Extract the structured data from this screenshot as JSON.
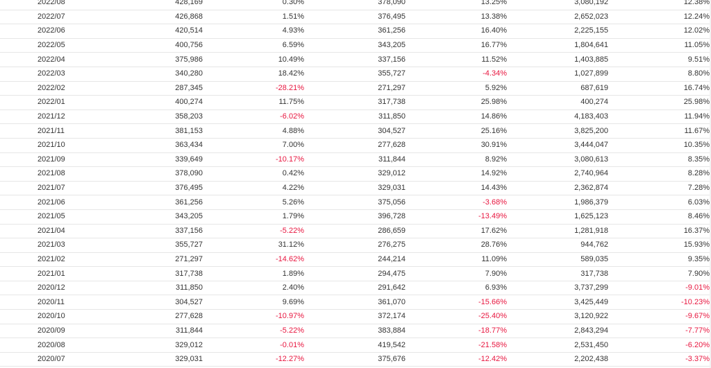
{
  "colors": {
    "negative": "#e8163f",
    "text": "#333333",
    "row_border": "#e6e6e6"
  },
  "table": {
    "rows": [
      [
        "2022/08",
        "428,169",
        "0.30%",
        "378,090",
        "13.25%",
        "3,080,192",
        "12.38%"
      ],
      [
        "2022/07",
        "426,868",
        "1.51%",
        "376,495",
        "13.38%",
        "2,652,023",
        "12.24%"
      ],
      [
        "2022/06",
        "420,514",
        "4.93%",
        "361,256",
        "16.40%",
        "2,225,155",
        "12.02%"
      ],
      [
        "2022/05",
        "400,756",
        "6.59%",
        "343,205",
        "16.77%",
        "1,804,641",
        "11.05%"
      ],
      [
        "2022/04",
        "375,986",
        "10.49%",
        "337,156",
        "11.52%",
        "1,403,885",
        "9.51%"
      ],
      [
        "2022/03",
        "340,280",
        "18.42%",
        "355,727",
        "-4.34%",
        "1,027,899",
        "8.80%"
      ],
      [
        "2022/02",
        "287,345",
        "-28.21%",
        "271,297",
        "5.92%",
        "687,619",
        "16.74%"
      ],
      [
        "2022/01",
        "400,274",
        "11.75%",
        "317,738",
        "25.98%",
        "400,274",
        "25.98%"
      ],
      [
        "2021/12",
        "358,203",
        "-6.02%",
        "311,850",
        "14.86%",
        "4,183,403",
        "11.94%"
      ],
      [
        "2021/11",
        "381,153",
        "4.88%",
        "304,527",
        "25.16%",
        "3,825,200",
        "11.67%"
      ],
      [
        "2021/10",
        "363,434",
        "7.00%",
        "277,628",
        "30.91%",
        "3,444,047",
        "10.35%"
      ],
      [
        "2021/09",
        "339,649",
        "-10.17%",
        "311,844",
        "8.92%",
        "3,080,613",
        "8.35%"
      ],
      [
        "2021/08",
        "378,090",
        "0.42%",
        "329,012",
        "14.92%",
        "2,740,964",
        "8.28%"
      ],
      [
        "2021/07",
        "376,495",
        "4.22%",
        "329,031",
        "14.43%",
        "2,362,874",
        "7.28%"
      ],
      [
        "2021/06",
        "361,256",
        "5.26%",
        "375,056",
        "-3.68%",
        "1,986,379",
        "6.03%"
      ],
      [
        "2021/05",
        "343,205",
        "1.79%",
        "396,728",
        "-13.49%",
        "1,625,123",
        "8.46%"
      ],
      [
        "2021/04",
        "337,156",
        "-5.22%",
        "286,659",
        "17.62%",
        "1,281,918",
        "16.37%"
      ],
      [
        "2021/03",
        "355,727",
        "31.12%",
        "276,275",
        "28.76%",
        "944,762",
        "15.93%"
      ],
      [
        "2021/02",
        "271,297",
        "-14.62%",
        "244,214",
        "11.09%",
        "589,035",
        "9.35%"
      ],
      [
        "2021/01",
        "317,738",
        "1.89%",
        "294,475",
        "7.90%",
        "317,738",
        "7.90%"
      ],
      [
        "2020/12",
        "311,850",
        "2.40%",
        "291,642",
        "6.93%",
        "3,737,299",
        "-9.01%"
      ],
      [
        "2020/11",
        "304,527",
        "9.69%",
        "361,070",
        "-15.66%",
        "3,425,449",
        "-10.23%"
      ],
      [
        "2020/10",
        "277,628",
        "-10.97%",
        "372,174",
        "-25.40%",
        "3,120,922",
        "-9.67%"
      ],
      [
        "2020/09",
        "311,844",
        "-5.22%",
        "383,884",
        "-18.77%",
        "2,843,294",
        "-7.77%"
      ],
      [
        "2020/08",
        "329,012",
        "-0.01%",
        "419,542",
        "-21.58%",
        "2,531,450",
        "-6.20%"
      ],
      [
        "2020/07",
        "329,031",
        "-12.27%",
        "375,676",
        "-12.42%",
        "2,202,438",
        "-3.37%"
      ]
    ]
  }
}
